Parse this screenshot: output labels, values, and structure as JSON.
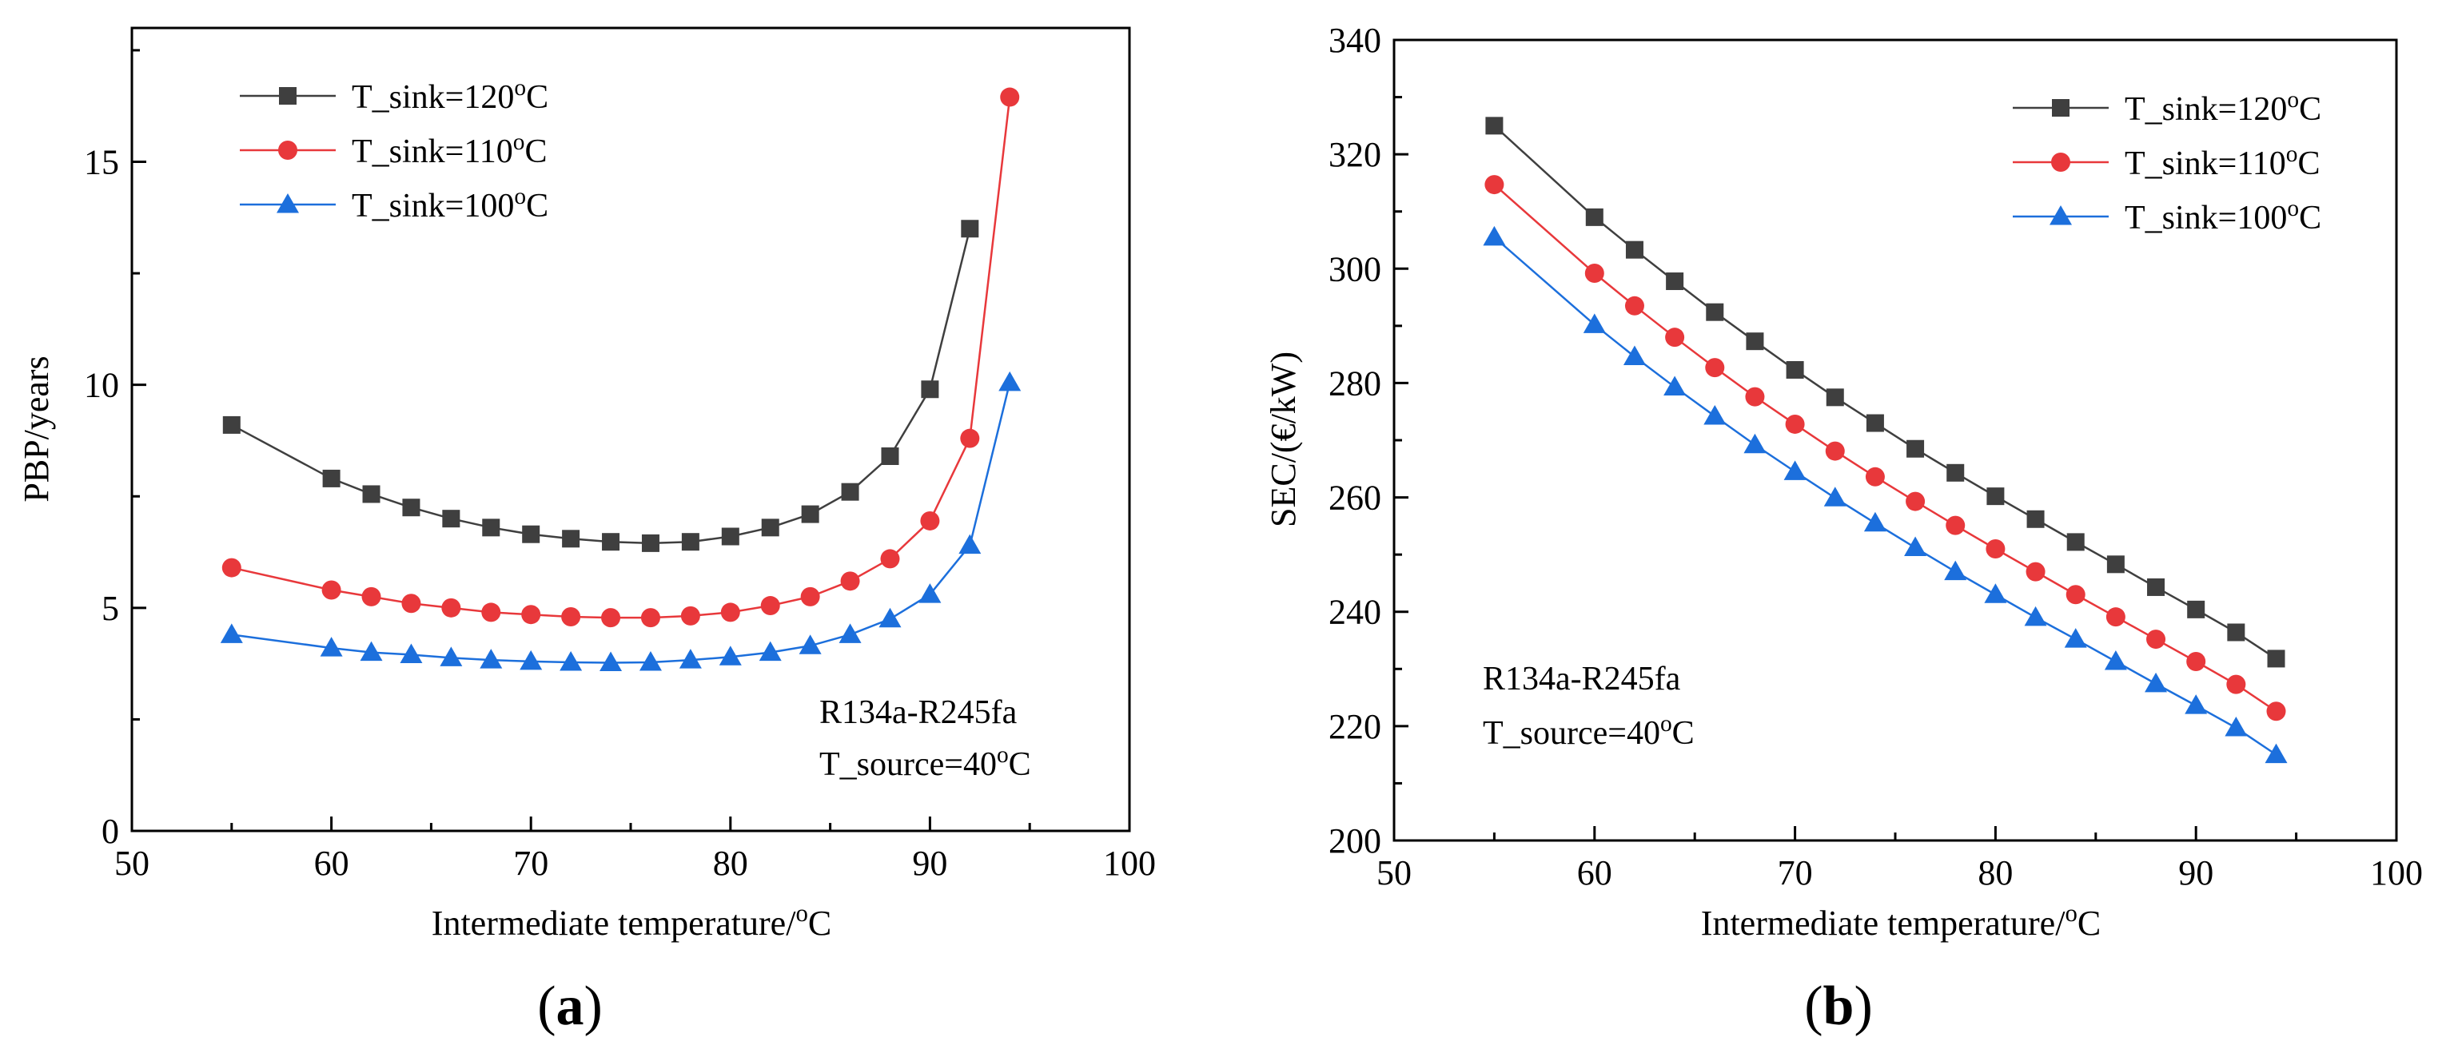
{
  "chart_data": [
    {
      "type": "line",
      "panel_label": "(a)",
      "xlabel": "Intermediate temperature/",
      "xlabel_unit": "oC",
      "ylabel": "PBP/years",
      "xlim": [
        50,
        100
      ],
      "ylim": [
        0,
        18
      ],
      "xticks": [
        50,
        60,
        70,
        80,
        90,
        100
      ],
      "yticks": [
        0,
        5,
        10,
        15
      ],
      "legend_position": "top-left",
      "annotations": [
        "R134a-R245fa",
        "T_source=40oC"
      ],
      "annotation_position": "bottom-right",
      "series": [
        {
          "name": "T_sink=120oC",
          "marker": "square",
          "color": "#3f3f3f",
          "x": [
            55,
            60,
            62,
            64,
            66,
            68,
            70,
            72,
            74,
            76,
            78,
            80,
            82,
            84,
            86,
            88,
            90,
            92
          ],
          "y": [
            9.1,
            7.9,
            7.55,
            7.25,
            7.0,
            6.8,
            6.65,
            6.55,
            6.48,
            6.45,
            6.48,
            6.6,
            6.8,
            7.1,
            7.6,
            8.4,
            9.9,
            13.5
          ]
        },
        {
          "name": "T_sink=110oC",
          "marker": "circle",
          "color": "#e8383b",
          "x": [
            55,
            60,
            62,
            64,
            66,
            68,
            70,
            72,
            74,
            76,
            78,
            80,
            82,
            84,
            86,
            88,
            90,
            92,
            94
          ],
          "y": [
            5.9,
            5.4,
            5.25,
            5.1,
            5.0,
            4.9,
            4.85,
            4.8,
            4.78,
            4.78,
            4.82,
            4.9,
            5.05,
            5.25,
            5.6,
            6.1,
            6.95,
            8.8,
            16.45
          ]
        },
        {
          "name": "T_sink=100oC",
          "marker": "triangle",
          "color": "#1c6fdc",
          "x": [
            55,
            60,
            62,
            64,
            66,
            68,
            70,
            72,
            74,
            76,
            78,
            80,
            82,
            84,
            86,
            88,
            90,
            92,
            94
          ],
          "y": [
            4.4,
            4.1,
            4.0,
            3.95,
            3.88,
            3.83,
            3.8,
            3.78,
            3.77,
            3.78,
            3.83,
            3.9,
            4.0,
            4.15,
            4.4,
            4.75,
            5.3,
            6.4,
            10.05
          ]
        }
      ]
    },
    {
      "type": "line",
      "panel_label": "(b)",
      "xlabel": "Intermediate temperature/",
      "xlabel_unit": "oC",
      "ylabel": "SEC/(€/kW)",
      "xlim": [
        50,
        100
      ],
      "ylim": [
        200,
        340
      ],
      "xticks": [
        50,
        60,
        70,
        80,
        90,
        100
      ],
      "yticks": [
        200,
        220,
        240,
        260,
        280,
        300,
        320,
        340
      ],
      "legend_position": "top-right",
      "annotations": [
        "R134a-R245fa",
        "T_source=40oC"
      ],
      "annotation_position": "bottom-left",
      "series": [
        {
          "name": "T_sink=120oC",
          "marker": "square",
          "color": "#3f3f3f",
          "x": [
            55,
            60,
            62,
            64,
            66,
            68,
            70,
            72,
            74,
            76,
            78,
            80,
            82,
            84,
            86,
            88,
            90,
            92,
            94
          ],
          "y": [
            325,
            309,
            303.3,
            297.8,
            292.4,
            287.3,
            282.3,
            277.5,
            273,
            268.5,
            264.3,
            260.2,
            256.2,
            252.2,
            248.3,
            244.3,
            240.4,
            236.4,
            231.8
          ]
        },
        {
          "name": "T_sink=110oC",
          "marker": "circle",
          "color": "#e8383b",
          "x": [
            55,
            60,
            62,
            64,
            66,
            68,
            70,
            72,
            74,
            76,
            78,
            80,
            82,
            84,
            86,
            88,
            90,
            92,
            94
          ],
          "y": [
            314.7,
            299.2,
            293.5,
            288,
            282.7,
            277.6,
            272.8,
            268.1,
            263.6,
            259.3,
            255.1,
            251,
            247,
            243,
            239.1,
            235.2,
            231.3,
            227.3,
            222.6
          ]
        },
        {
          "name": "T_sink=100oC",
          "marker": "triangle",
          "color": "#1c6fdc",
          "x": [
            55,
            60,
            62,
            64,
            66,
            68,
            70,
            72,
            74,
            76,
            78,
            80,
            82,
            84,
            86,
            88,
            90,
            92,
            94
          ],
          "y": [
            305.5,
            290.2,
            284.6,
            279.3,
            274.2,
            269.2,
            264.5,
            259.9,
            255.5,
            251.2,
            247,
            243,
            239,
            235.2,
            231.3,
            227.4,
            223.6,
            219.7,
            215
          ]
        }
      ]
    }
  ]
}
